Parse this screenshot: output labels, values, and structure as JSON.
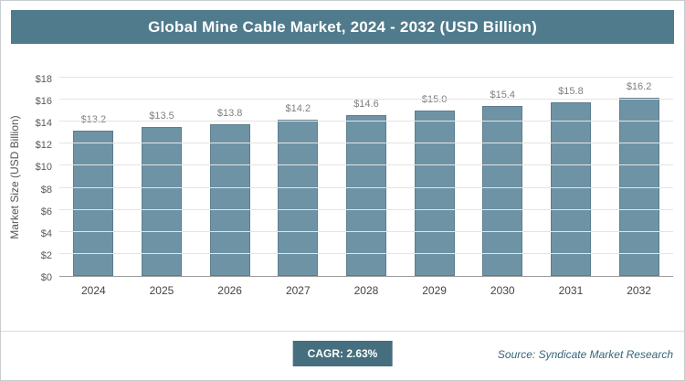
{
  "chart_data": {
    "type": "bar",
    "title": "Global Mine Cable Market, 2024 - 2032 (USD Billion)",
    "categories": [
      "2024",
      "2025",
      "2026",
      "2027",
      "2028",
      "2029",
      "2030",
      "2031",
      "2032"
    ],
    "values": [
      13.2,
      13.5,
      13.8,
      14.2,
      14.6,
      15.0,
      15.4,
      15.8,
      16.2
    ],
    "bar_labels": [
      "$13.2",
      "$13.5",
      "$13.8",
      "$14.2",
      "$14.6",
      "$15.0",
      "$15.4",
      "$15.8",
      "$16.2"
    ],
    "xlabel": "",
    "ylabel": "Market Size (USD Billion)",
    "ylim": [
      0,
      18
    ],
    "ytick_step": 2,
    "ytick_labels": [
      "$0",
      "$2",
      "$4",
      "$6",
      "$8",
      "$10",
      "$12",
      "$14",
      "$16",
      "$18"
    ],
    "grid": "horizontal",
    "legend": "none",
    "bar_color": "#6E93A5",
    "title_bg": "#4F7B8C",
    "badge_bg": "#456F7E"
  },
  "footer": {
    "cagr_label": "CAGR: 2.63%",
    "source": "Source: Syndicate Market Research"
  }
}
